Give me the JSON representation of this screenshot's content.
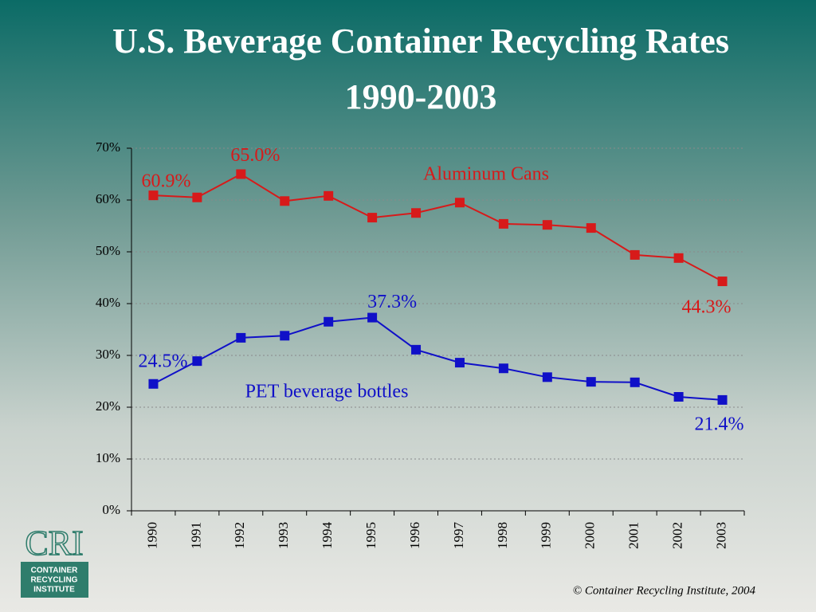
{
  "chart_data": {
    "type": "line",
    "title": "U.S. Beverage Container Recycling Rates",
    "subtitle": "1990-2003",
    "categories": [
      "1990",
      "1991",
      "1992",
      "1993",
      "1994",
      "1995",
      "1996",
      "1997",
      "1998",
      "1999",
      "2000",
      "2001",
      "2002",
      "2003"
    ],
    "series": [
      {
        "name": "Aluminum Cans",
        "color": "#d71a1a",
        "values": [
          60.9,
          60.5,
          65.0,
          59.8,
          60.8,
          56.6,
          57.5,
          59.5,
          55.4,
          55.2,
          54.6,
          49.4,
          48.8,
          44.3
        ],
        "value_labels": [
          "60.9%",
          null,
          "65.0%",
          null,
          null,
          null,
          null,
          null,
          null,
          null,
          null,
          null,
          null,
          "44.3%"
        ]
      },
      {
        "name": "PET beverage bottles",
        "color": "#1010c8",
        "values": [
          24.5,
          28.9,
          33.4,
          33.8,
          36.5,
          37.3,
          31.1,
          28.6,
          27.5,
          25.8,
          24.9,
          24.8,
          22.0,
          21.4
        ],
        "value_labels": [
          "24.5%",
          null,
          null,
          null,
          null,
          "37.3%",
          null,
          null,
          null,
          null,
          null,
          null,
          null,
          "21.4%"
        ]
      }
    ],
    "ylim": [
      0,
      70
    ],
    "yticks": [
      {
        "value": 0,
        "label": "0%"
      },
      {
        "value": 10,
        "label": "10%"
      },
      {
        "value": 20,
        "label": "20%"
      },
      {
        "value": 30,
        "label": "30%"
      },
      {
        "value": 40,
        "label": "40%"
      },
      {
        "value": 50,
        "label": "50%"
      },
      {
        "value": 60,
        "label": "60%"
      },
      {
        "value": 70,
        "label": "70%"
      }
    ],
    "grid": true,
    "source": "©  Container Recycling Institute, 2004"
  },
  "logo": {
    "mark": "CRI",
    "lines": [
      "CONTAINER",
      "RECYCLING",
      "INSTITUTE"
    ]
  }
}
